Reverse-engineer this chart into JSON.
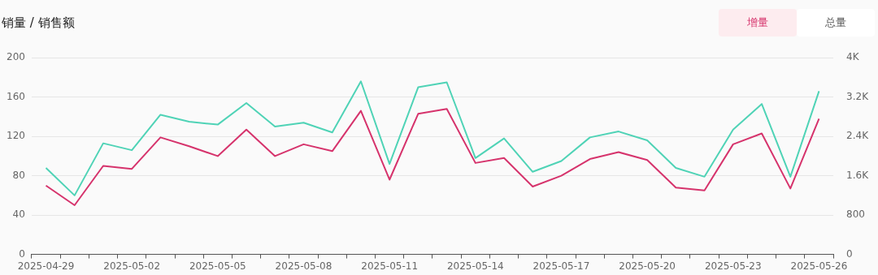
{
  "chart_data": {
    "type": "line",
    "title": "销量 / 销售额",
    "annotations": [
      "增量",
      "总量"
    ],
    "categories": [
      "2025-04-29",
      null,
      null,
      "2025-05-02",
      null,
      null,
      "2025-05-05",
      null,
      null,
      "2025-05-08",
      null,
      null,
      "2025-05-11",
      null,
      null,
      "2025-05-14",
      null,
      null,
      "2025-05-17",
      null,
      null,
      "2025-05-20",
      null,
      null,
      "2025-05-23",
      null,
      null,
      "2025-05-26"
    ],
    "series": [
      {
        "color": "#4fd3b6",
        "values": [
          88,
          60,
          113,
          106,
          142,
          135,
          132,
          154,
          130,
          134,
          124,
          176,
          92,
          170,
          175,
          98,
          118,
          84,
          95,
          119,
          125,
          116,
          88,
          79,
          127,
          153,
          79,
          166
        ]
      },
      {
        "color": "#d6336c",
        "values": [
          70,
          50,
          90,
          87,
          119,
          110,
          100,
          127,
          100,
          112,
          105,
          146,
          76,
          143,
          148,
          93,
          98,
          69,
          80,
          97,
          104,
          96,
          68,
          65,
          112,
          123,
          67,
          138
        ]
      }
    ],
    "ylim": [
      0,
      200
    ],
    "yticks": [
      0,
      40,
      80,
      120,
      160,
      200
    ],
    "y2lim": [
      0,
      4000
    ],
    "y2ticks": [
      {
        "value": 0,
        "label": "0"
      },
      {
        "value": 800,
        "label": "800"
      },
      {
        "value": 1600,
        "label": "1.6K"
      },
      {
        "value": 2400,
        "label": "2.4K"
      },
      {
        "value": 3200,
        "label": "3.2K"
      },
      {
        "value": 4000,
        "label": "4K"
      }
    ],
    "grid": "y",
    "legend": false,
    "marker": "none",
    "line_style": "solid"
  }
}
